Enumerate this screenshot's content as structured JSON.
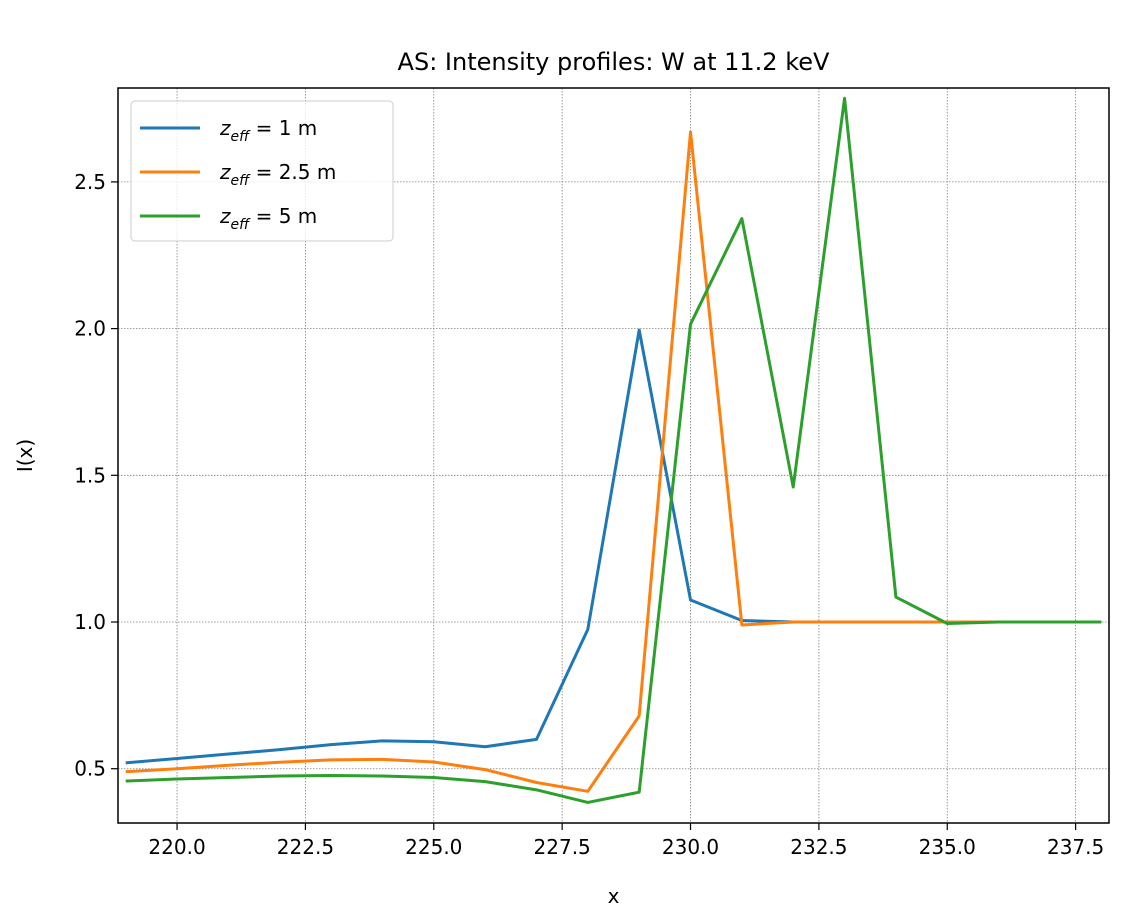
{
  "chart_data": {
    "type": "line",
    "title": "AS: Intensity profiles: W at 11.2 keV",
    "xlabel": "x",
    "ylabel": "I(x)",
    "xlim": [
      218.85,
      238.15
    ],
    "ylim": [
      0.315,
      2.82
    ],
    "grid": true,
    "legend_position": "top-left",
    "xticks": [
      220.0,
      222.5,
      225.0,
      227.5,
      230.0,
      232.5,
      235.0,
      237.5
    ],
    "xtick_labels": [
      "220.0",
      "222.5",
      "225.0",
      "227.5",
      "230.0",
      "232.5",
      "235.0",
      "237.5"
    ],
    "yticks": [
      0.5,
      1.0,
      1.5,
      2.0,
      2.5
    ],
    "ytick_labels": [
      "0.5",
      "1.0",
      "1.5",
      "2.0",
      "2.5"
    ],
    "x": [
      219,
      220,
      221,
      222,
      223,
      224,
      225,
      226,
      227,
      228,
      229,
      230,
      231,
      232,
      233,
      234,
      235,
      236,
      237,
      238
    ],
    "series": [
      {
        "name": "z_eff = 1 m",
        "legend_base": "z",
        "legend_sub": "eff",
        "legend_rest": " = 1 m",
        "color": "#1f77b4",
        "values": [
          0.52,
          0.535,
          0.55,
          0.565,
          0.582,
          0.595,
          0.592,
          0.575,
          0.6,
          0.975,
          1.995,
          1.075,
          1.005,
          1.0,
          1.0,
          1.0,
          1.0,
          1.0,
          1.0,
          1.0
        ]
      },
      {
        "name": "z_eff = 2.5 m",
        "legend_base": "z",
        "legend_sub": "eff",
        "legend_rest": " = 2.5 m",
        "color": "#ff7f0e",
        "values": [
          0.49,
          0.5,
          0.512,
          0.522,
          0.53,
          0.532,
          0.523,
          0.497,
          0.453,
          0.423,
          0.68,
          2.67,
          0.99,
          1.0,
          1.0,
          1.0,
          1.0,
          1.0,
          1.0,
          1.0
        ]
      },
      {
        "name": "z_eff = 5 m",
        "legend_base": "z",
        "legend_sub": "eff",
        "legend_rest": " = 5 m",
        "color": "#2ca02c",
        "values": [
          0.458,
          0.465,
          0.47,
          0.475,
          0.477,
          0.475,
          0.47,
          0.456,
          0.428,
          0.385,
          0.42,
          2.015,
          2.375,
          1.46,
          2.785,
          1.085,
          0.995,
          1.0,
          1.0,
          1.0
        ]
      }
    ]
  }
}
